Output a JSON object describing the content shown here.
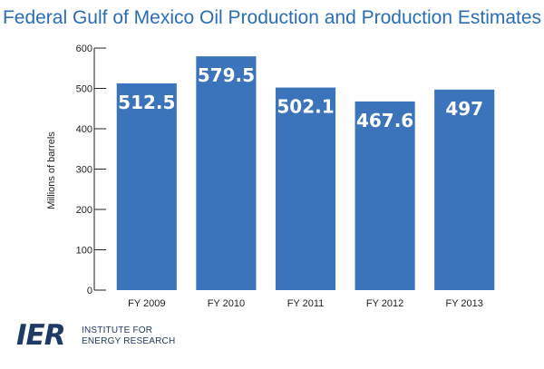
{
  "chart_data": {
    "type": "bar",
    "title": "Federal Gulf of Mexico Oil Production and Production Estimates",
    "xlabel": "",
    "ylabel": "Millions of barrels",
    "categories": [
      "FY 2009",
      "FY 2010",
      "FY 2011",
      "FY 2012",
      "FY 2013"
    ],
    "values": [
      512.5,
      579.5,
      502.1,
      467.6,
      497
    ],
    "value_labels": [
      "512.5",
      "579.5",
      "502.1",
      "467.6",
      "497"
    ],
    "ylim": [
      0,
      600
    ],
    "yticks": [
      0,
      100,
      200,
      300,
      400,
      500,
      600
    ],
    "grid": false,
    "legend": "none",
    "bar_color": "#3c74bb",
    "title_color": "#2a6db5"
  },
  "logo": {
    "mark": "IER",
    "line1": "INSTITUTE FOR",
    "line2": "ENERGY RESEARCH"
  }
}
